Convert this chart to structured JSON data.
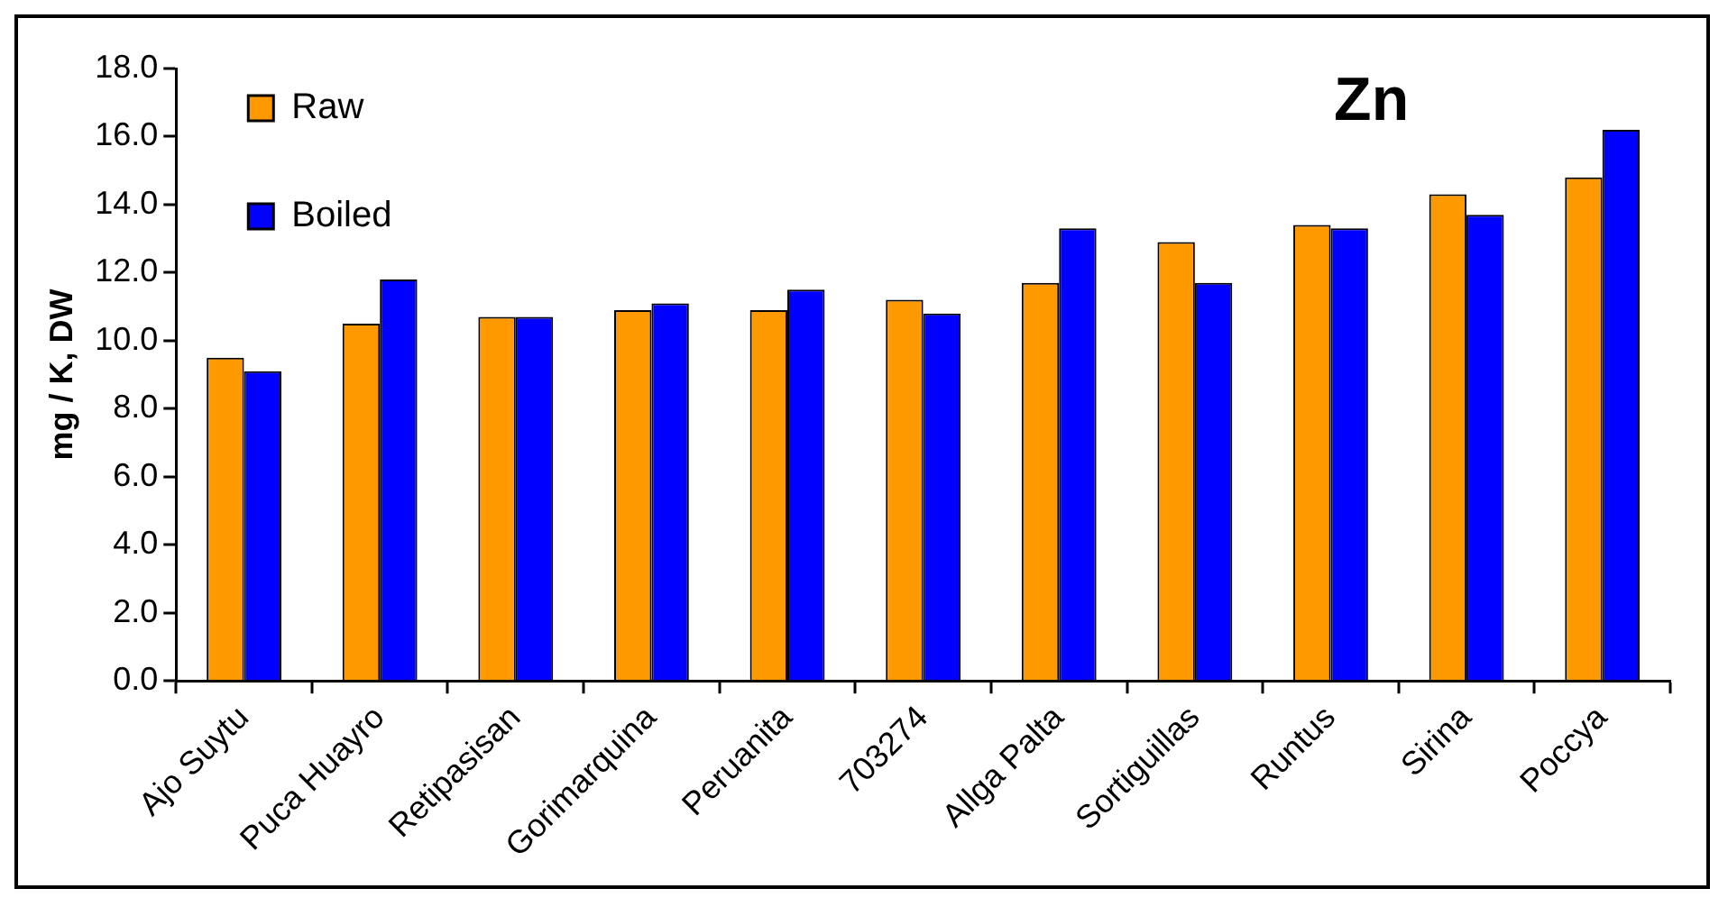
{
  "chart_data": {
    "type": "bar",
    "title": "Zn",
    "ylabel": "mg / K, DW",
    "categories": [
      "Ajo Suytu",
      "Puca Huayro",
      "Retipasisan",
      "Gorimarquina",
      "Peruanita",
      "703274",
      "Allga Palta",
      "Sortiguillas",
      "Runtus",
      "Sirina",
      "Poccya"
    ],
    "series": [
      {
        "name": "Raw",
        "color": "#ff9900",
        "values": [
          9.5,
          10.5,
          10.7,
          10.9,
          10.9,
          11.2,
          11.7,
          12.9,
          13.4,
          14.3,
          14.8
        ]
      },
      {
        "name": "Boiled",
        "color": "#0000ff",
        "values": [
          9.1,
          11.8,
          10.7,
          11.1,
          11.5,
          10.8,
          13.3,
          11.7,
          13.3,
          13.7,
          16.2
        ]
      }
    ],
    "ylim": [
      0,
      18
    ],
    "yticks": [
      {
        "value": 0,
        "label": "0.0"
      },
      {
        "value": 2,
        "label": "2.0"
      },
      {
        "value": 4,
        "label": "4.0"
      },
      {
        "value": 6,
        "label": "6.0"
      },
      {
        "value": 8,
        "label": "8.0"
      },
      {
        "value": 10,
        "label": "10.0"
      },
      {
        "value": 12,
        "label": "12.0"
      },
      {
        "value": 14,
        "label": "14.0"
      },
      {
        "value": 16,
        "label": "16.0"
      },
      {
        "value": 18,
        "label": "18.0"
      }
    ],
    "grid": false,
    "legend": "top left"
  }
}
